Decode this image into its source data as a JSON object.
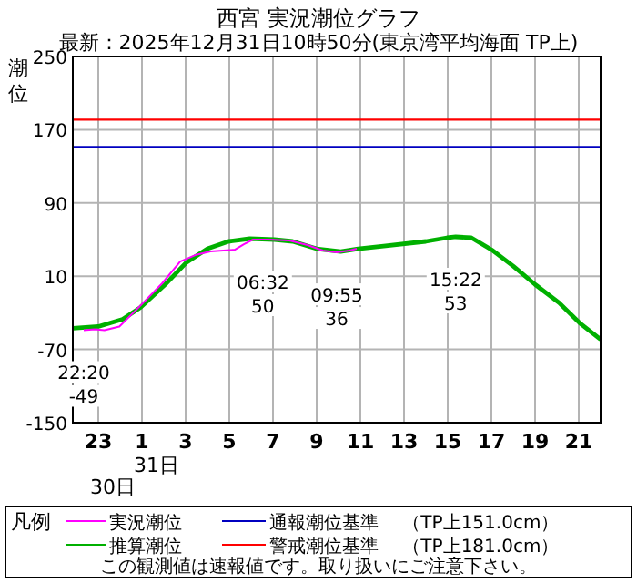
{
  "chart_data": {
    "type": "line",
    "title": "西宮 実況潮位グラフ",
    "subtitle": "最新：2025年12月31日10時50分(東京湾平均海面 TP上)",
    "ylabel": "潮位",
    "legend_title": "凡例",
    "xlim": [
      "2025-12-30T21:50",
      "2025-12-31T22:00"
    ],
    "xticks": [
      {
        "value": "2025-12-30T23:00",
        "label": "23"
      },
      {
        "value": "2025-12-31T01:00",
        "label": "1"
      },
      {
        "value": "2025-12-31T03:00",
        "label": "3"
      },
      {
        "value": "2025-12-31T05:00",
        "label": "5"
      },
      {
        "value": "2025-12-31T07:00",
        "label": "7"
      },
      {
        "value": "2025-12-31T09:00",
        "label": "9"
      },
      {
        "value": "2025-12-31T11:00",
        "label": "11"
      },
      {
        "value": "2025-12-31T13:00",
        "label": "13"
      },
      {
        "value": "2025-12-31T15:00",
        "label": "15"
      },
      {
        "value": "2025-12-31T17:00",
        "label": "17"
      },
      {
        "value": "2025-12-31T19:00",
        "label": "19"
      },
      {
        "value": "2025-12-31T21:00",
        "label": "21"
      }
    ],
    "ylim": [
      -150,
      250
    ],
    "yticks": [
      -150,
      -70,
      10,
      90,
      170,
      250
    ],
    "grid": true,
    "legend": "bottom",
    "series": [
      {
        "name": "実況潮位",
        "color": "#ff00ff",
        "x": [
          "2025-12-30T22:20",
          "2025-12-30T22:50",
          "2025-12-30T23:17",
          "2025-12-30T23:58",
          "2025-12-31T00:56",
          "2025-12-31T01:55",
          "2025-12-31T02:45",
          "2025-12-31T03:26",
          "2025-12-31T04:08",
          "2025-12-31T05:15",
          "2025-12-31T05:40",
          "2025-12-31T06:05",
          "2025-12-31T06:32",
          "2025-12-31T06:47",
          "2025-12-31T07:45",
          "2025-12-31T08:35",
          "2025-12-31T09:17",
          "2025-12-31T09:55",
          "2025-12-31T10:30",
          "2025-12-31T10:50"
        ],
        "values": [
          -49,
          -48,
          -49,
          -45,
          -22,
          2,
          26,
          33,
          37,
          39,
          45,
          50,
          50,
          50,
          49,
          44,
          38,
          36,
          38,
          40
        ]
      },
      {
        "name": "推算潮位",
        "color": "#00b000",
        "x": [
          "2025-12-30T21:50",
          "2025-12-30T23:00",
          "2025-12-31T00:07",
          "2025-12-31T00:56",
          "2025-12-31T02:04",
          "2025-12-31T03:02",
          "2025-12-31T04:00",
          "2025-12-31T04:58",
          "2025-12-31T05:56",
          "2025-12-31T07:04",
          "2025-12-31T07:54",
          "2025-12-31T09:00",
          "2025-12-31T10:06",
          "2025-12-31T10:54",
          "2025-12-31T12:04",
          "2025-12-31T14:00",
          "2025-12-31T14:58",
          "2025-12-31T15:22",
          "2025-12-31T16:05",
          "2025-12-31T17:04",
          "2025-12-31T18:00",
          "2025-12-31T19:00",
          "2025-12-31T20:06",
          "2025-12-31T21:05",
          "2025-12-31T22:00"
        ],
        "values": [
          -47,
          -45,
          -37,
          -24,
          1,
          25,
          40,
          48,
          51,
          50,
          48,
          40,
          37,
          40,
          43,
          48,
          52,
          53,
          52,
          38,
          21,
          1,
          -19,
          -42,
          -59
        ]
      }
    ],
    "ref_lines": [
      {
        "axis": "y",
        "value": 151,
        "label": "通報潮位基準　 （TP上151.0cm）",
        "color": "#0000c0"
      },
      {
        "axis": "y",
        "value": 181,
        "label": "警戒潮位基準　 （TP上181.0cm）",
        "color": "#ff0000"
      }
    ],
    "annotations": [
      {
        "text": "22:20\n-49",
        "x": "2025-12-30T22:20",
        "y": -49
      },
      {
        "text": "06:32\n50",
        "x": "2025-12-31T06:32",
        "y": 50
      },
      {
        "text": "09:55\n36",
        "x": "2025-12-31T09:55",
        "y": 36
      },
      {
        "text": "15:22\n53",
        "x": "2025-12-31T15:22",
        "y": 53
      },
      "31日",
      "30日",
      "この観測値は速報値です。取り扱いにご注意下さい。"
    ]
  }
}
